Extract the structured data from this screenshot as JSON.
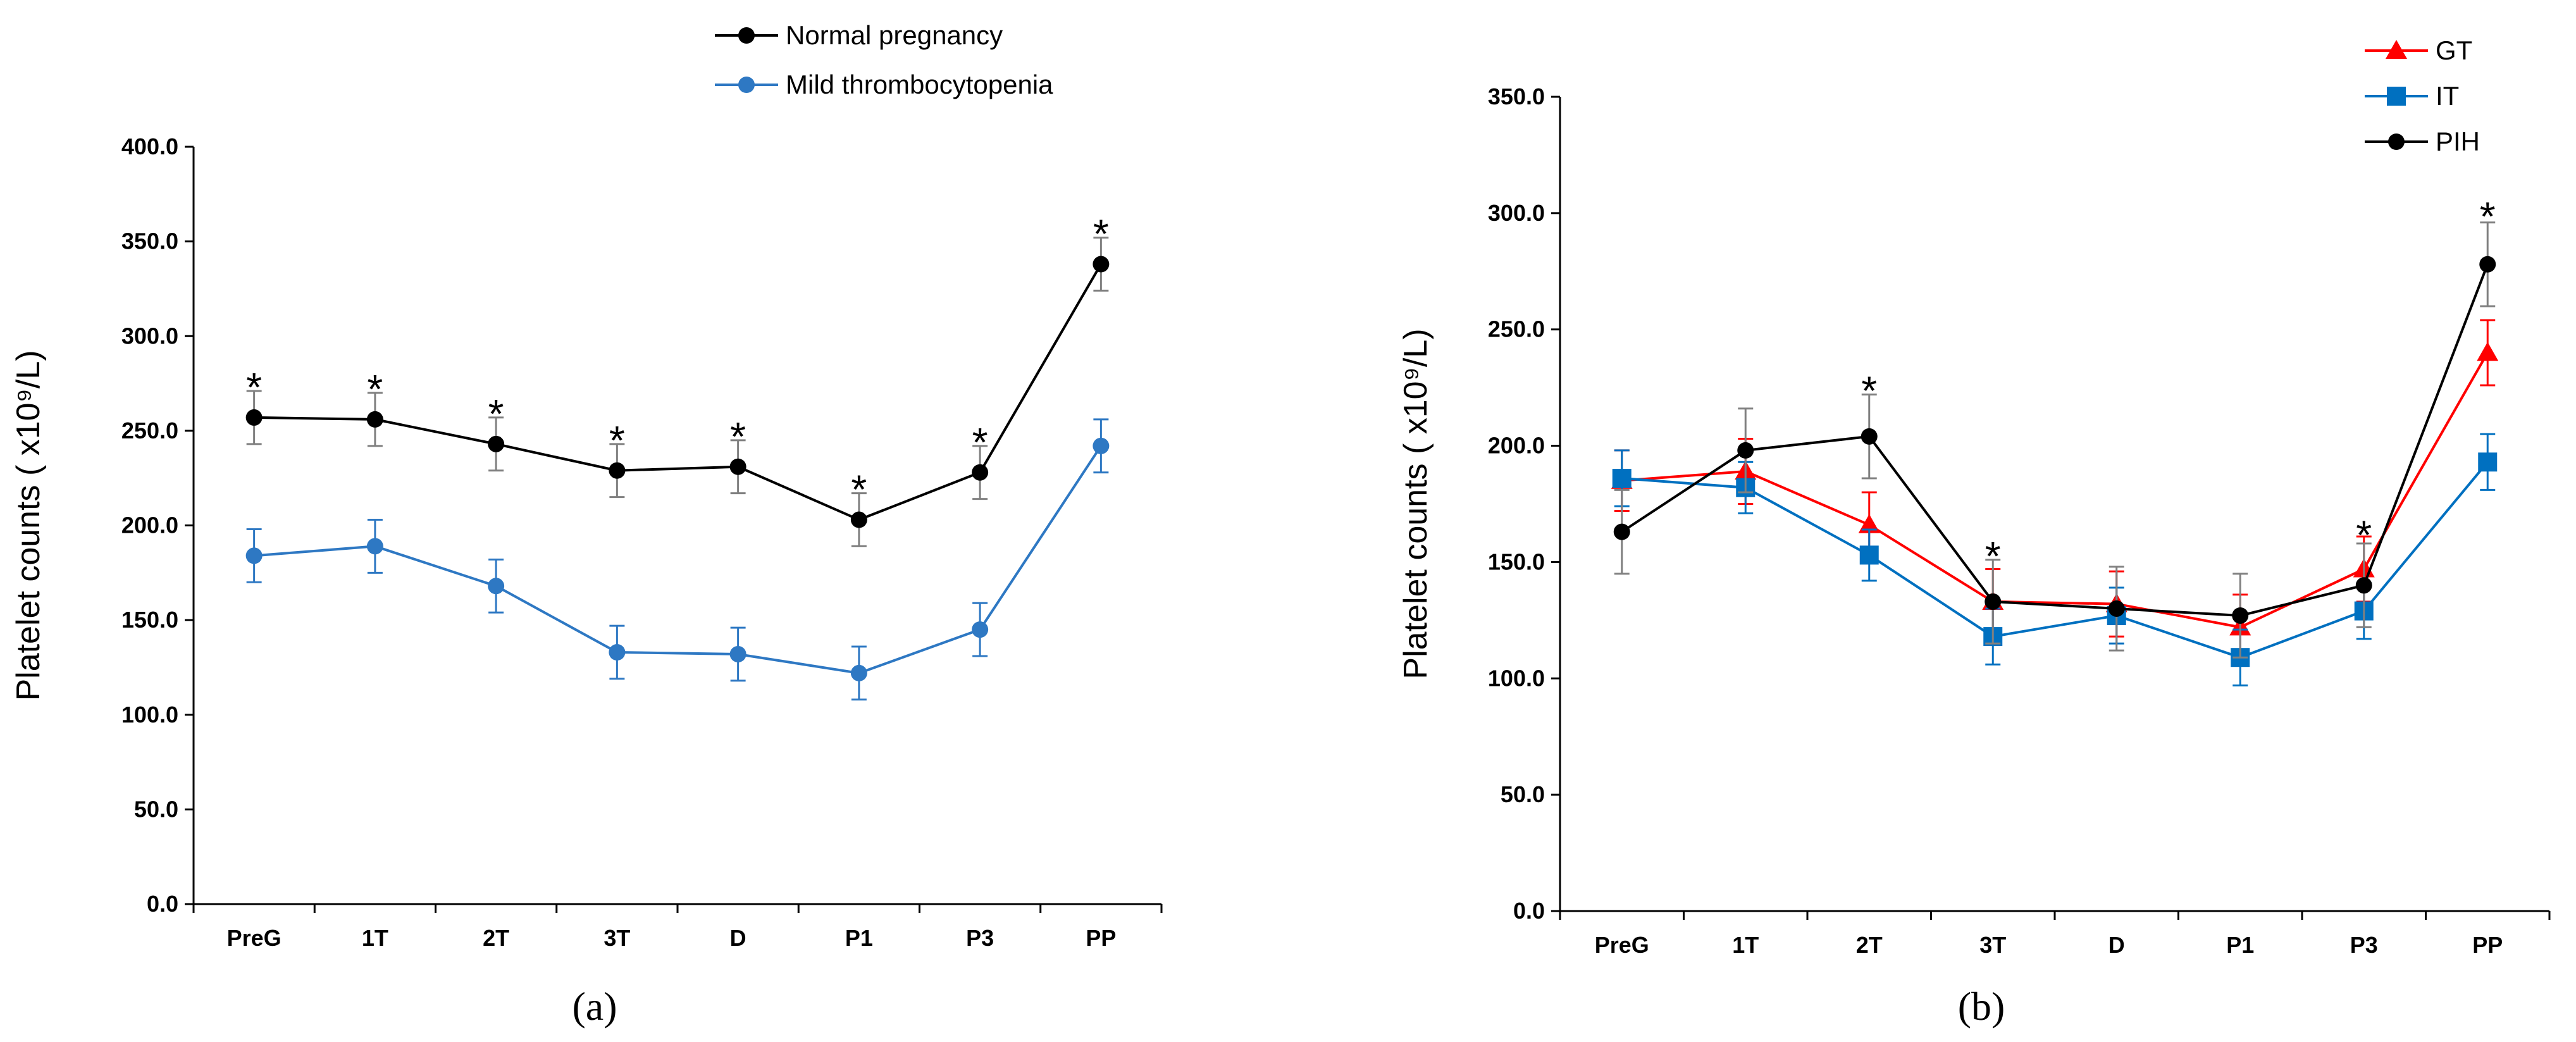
{
  "panels": [
    {
      "caption": "(a)",
      "chart_data": {
        "type": "line",
        "title": "",
        "xlabel": "",
        "ylabel": "Platelet counts ( x10⁹/L)",
        "categories": [
          "PreG",
          "1T",
          "2T",
          "3T",
          "D",
          "P1",
          "P3",
          "PP"
        ],
        "ylim": [
          0,
          400
        ],
        "yticks": [
          "0.0",
          "50.0",
          "100.0",
          "150.0",
          "200.0",
          "250.0",
          "300.0",
          "350.0",
          "400.0"
        ],
        "grid": false,
        "legend_position": "top-center",
        "series": [
          {
            "name": "Normal pregnancy",
            "color": "#000000",
            "error_color": "#808080",
            "marker": "circle",
            "values": [
              257,
              256,
              243,
              229,
              231,
              203,
              228,
              338
            ],
            "errors": [
              14,
              14,
              14,
              14,
              14,
              14,
              14,
              14
            ]
          },
          {
            "name": "Mild thrombocytopenia",
            "color": "#2E78C3",
            "error_color": "#2E78C3",
            "marker": "circle",
            "values": [
              184,
              189,
              168,
              133,
              132,
              122,
              145,
              242
            ],
            "errors": [
              14,
              14,
              14,
              14,
              14,
              14,
              14,
              14
            ]
          }
        ],
        "annotations": [
          {
            "category": "PreG",
            "text": "*",
            "value": 271
          },
          {
            "category": "1T",
            "text": "*",
            "value": 270
          },
          {
            "category": "2T",
            "text": "*",
            "value": 257
          },
          {
            "category": "3T",
            "text": "*",
            "value": 243
          },
          {
            "category": "D",
            "text": "*",
            "value": 245
          },
          {
            "category": "P1",
            "text": "*",
            "value": 217
          },
          {
            "category": "P3",
            "text": "*",
            "value": 242
          },
          {
            "category": "PP",
            "text": "*",
            "value": 352
          }
        ]
      }
    },
    {
      "caption": "(b)",
      "chart_data": {
        "type": "line",
        "title": "",
        "xlabel": "",
        "ylabel": "Platelet counts ( x10⁹/L)",
        "categories": [
          "PreG",
          "1T",
          "2T",
          "3T",
          "D",
          "P1",
          "P3",
          "PP"
        ],
        "ylim": [
          0,
          350
        ],
        "yticks": [
          "0.0",
          "50.0",
          "100.0",
          "150.0",
          "200.0",
          "250.0",
          "300.0",
          "350.0"
        ],
        "grid": false,
        "legend_position": "top-right",
        "series": [
          {
            "name": "GT",
            "color": "#FF0000",
            "error_color": "#FF0000",
            "marker": "triangle",
            "values": [
              185,
              189,
              166,
              133,
              132,
              122,
              147,
              240
            ],
            "errors": [
              13,
              14,
              14,
              14,
              14,
              14,
              14,
              14
            ]
          },
          {
            "name": "IT",
            "color": "#0070C0",
            "error_color": "#0070C0",
            "marker": "square",
            "values": [
              186,
              182,
              153,
              118,
              127,
              109,
              129,
              193
            ],
            "errors": [
              12,
              11,
              11,
              12,
              12,
              12,
              12,
              12
            ]
          },
          {
            "name": "PIH",
            "color": "#000000",
            "error_color": "#808080",
            "marker": "circle",
            "values": [
              163,
              198,
              204,
              133,
              130,
              127,
              140,
              278
            ],
            "errors": [
              18,
              18,
              18,
              18,
              18,
              18,
              18,
              18
            ]
          }
        ],
        "annotations": [
          {
            "category": "2T",
            "text": "*",
            "value": 222
          },
          {
            "category": "3T",
            "text": "*",
            "value": 151
          },
          {
            "category": "P3",
            "text": "*",
            "value": 160
          },
          {
            "category": "PP",
            "text": "*",
            "value": 297
          }
        ]
      }
    }
  ]
}
